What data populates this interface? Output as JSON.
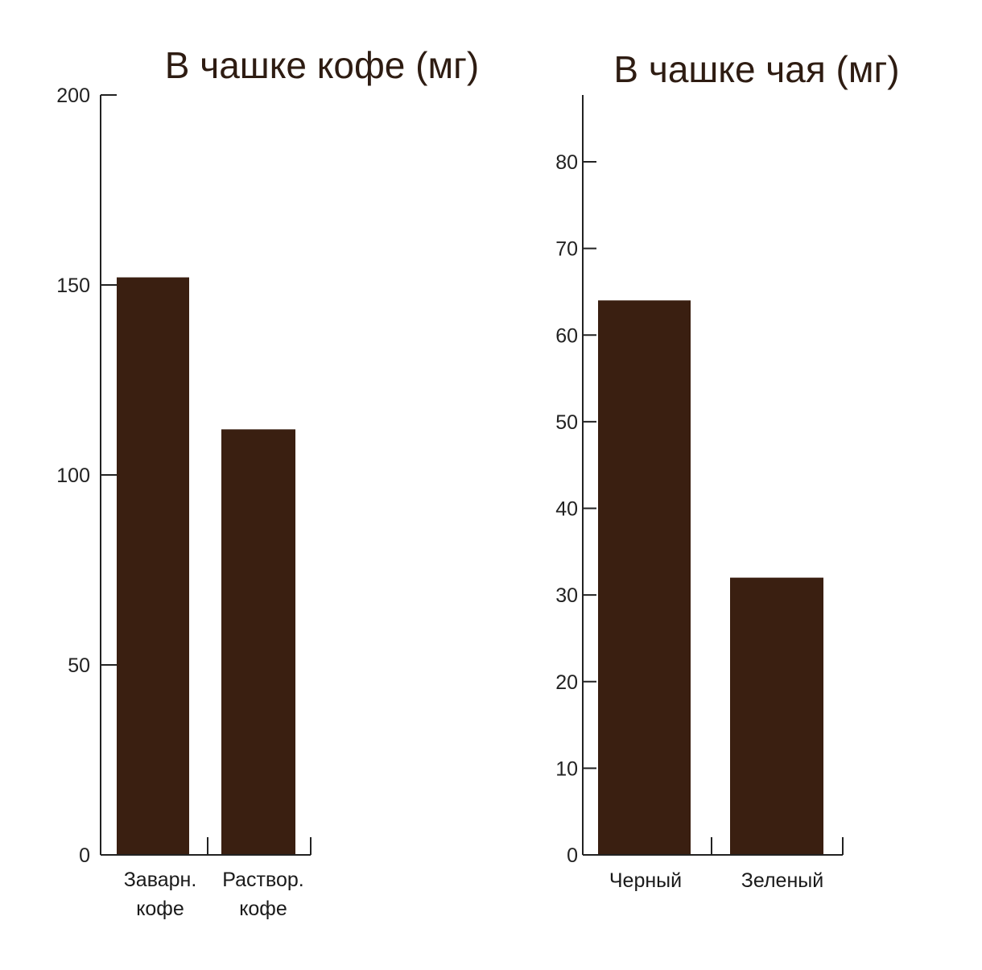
{
  "colors": {
    "bar": "#3a1f11",
    "axis": "#222222",
    "title": "#2e1c12"
  },
  "chart_data": [
    {
      "type": "bar",
      "title": "В чашке кофе (мг)",
      "categories": [
        [
          "Заварн.",
          "кофе"
        ],
        [
          "Раствор.",
          "кофе"
        ]
      ],
      "values": [
        152,
        112
      ],
      "ylim": [
        0,
        200
      ],
      "yticks": [
        0,
        50,
        100,
        150,
        200
      ],
      "xlabel": "",
      "ylabel": "",
      "grid": false
    },
    {
      "type": "bar",
      "title": "В чашке чая (мг)",
      "categories": [
        [
          "Черный"
        ],
        [
          "Зеленый"
        ]
      ],
      "values": [
        64,
        32
      ],
      "ylim": [
        0,
        87
      ],
      "yticks": [
        0,
        10,
        20,
        30,
        40,
        50,
        60,
        70,
        80
      ],
      "xlabel": "",
      "ylabel": "",
      "grid": false
    }
  ]
}
